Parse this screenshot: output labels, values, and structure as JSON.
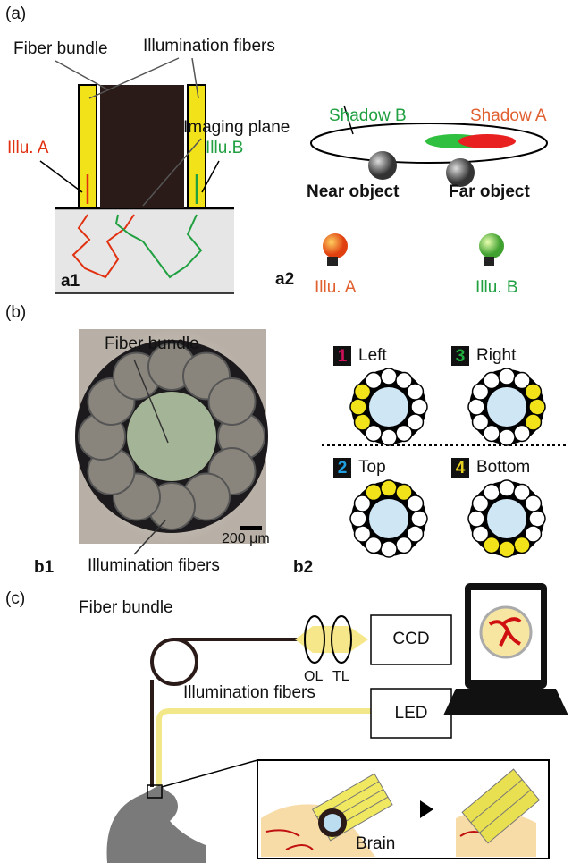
{
  "panel_a": {
    "label": "(a)",
    "a1": {
      "label": "a1",
      "fiber_bundle": "Fiber bundle",
      "illumination_fibers": "Illumination fibers",
      "imaging_plane": "Imaging plane",
      "illu_a": "Illu. A",
      "illu_b": "Illu.B"
    },
    "a2": {
      "label": "a2",
      "shadow_b": "Shadow B",
      "shadow_a": "Shadow A",
      "near_object": "Near object",
      "far_object": "Far object",
      "illu_a": "Illu. A",
      "illu_b": "Illu. B"
    }
  },
  "panel_b": {
    "label": "(b)",
    "b1": {
      "label": "b1",
      "fiber_bundle": "Fiber bundle",
      "scale": "200 μm",
      "illumination_fibers": "Illumination fibers"
    },
    "b2": {
      "label": "b2",
      "patterns": [
        {
          "number": "1",
          "name": "Left"
        },
        {
          "number": "3",
          "name": "Right"
        },
        {
          "number": "2",
          "name": "Top"
        },
        {
          "number": "4",
          "name": "Bottom"
        }
      ]
    }
  },
  "panel_c": {
    "label": "(c)",
    "fiber_bundle": "Fiber bundle",
    "ol": "OL",
    "tl": "TL",
    "ccd": "CCD",
    "illumination_fibers": "Illumination fibers",
    "led": "LED",
    "brain": "Brain"
  }
}
